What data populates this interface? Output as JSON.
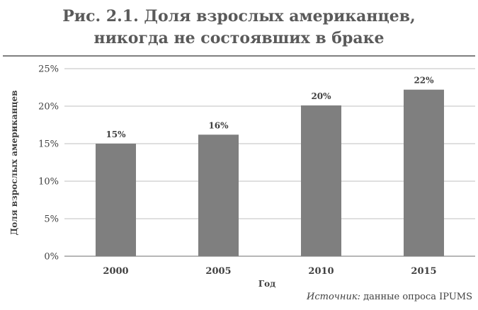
{
  "chart_data": {
    "type": "bar",
    "title_lines": [
      "Рис. 2.1. Доля взрослых американцев,",
      "никогда не состоявших в браке"
    ],
    "xlabel": "Год",
    "ylabel": "Доля взрослых американцев",
    "categories": [
      "2000",
      "2005",
      "2010",
      "2015"
    ],
    "values": [
      15,
      16.2,
      20.1,
      22.2
    ],
    "data_labels": [
      "15%",
      "16%",
      "20%",
      "22%"
    ],
    "ylim": [
      0,
      25
    ],
    "yticks": [
      0,
      5,
      10,
      15,
      20,
      25
    ],
    "ytick_labels": [
      "0%",
      "5%",
      "10%",
      "15%",
      "20%",
      "25%"
    ],
    "grid": true,
    "bar_color": "#7f7f7f",
    "grid_color": "#bfbfbf"
  },
  "source": {
    "label": "Источник:",
    "text": " данные опроса IPUMS"
  }
}
